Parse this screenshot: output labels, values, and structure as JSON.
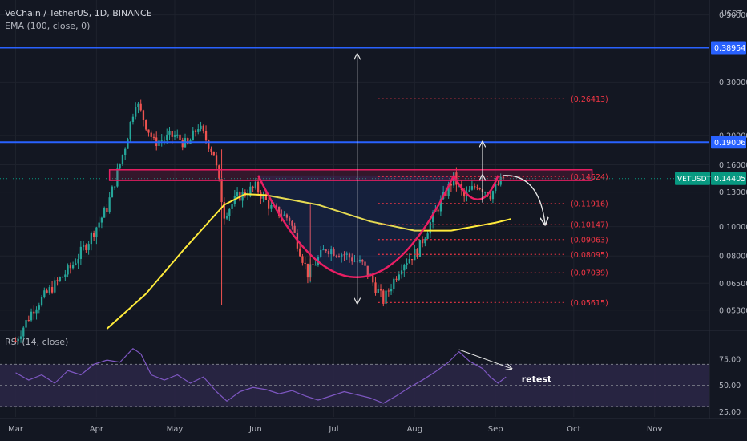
{
  "header": {
    "symbol_title": "VeChain / TetherUS, 1D, BINANCE",
    "ema_legend": "EMA (100, close, 0)",
    "rsi_legend": "RSI (14, close)",
    "axis_unit": "USDT"
  },
  "colors": {
    "background": "#131722",
    "grid": "#1e222d",
    "candle_up": "#26a69a",
    "candle_down": "#ef5350",
    "ema": "#ffeb3b",
    "resistance": "#2962ff",
    "pattern": "#e91e63",
    "fib": "#f23645",
    "rsi_line": "#7e57c2",
    "rsi_band": "#2a2645",
    "price_badge": "#089981"
  },
  "chart_data": [
    {
      "type": "candlestick",
      "title": "VeChain / TetherUS, 1D, BINANCE",
      "symbol": "VETUSDT",
      "y_scale": "log",
      "ylim": [
        0.046,
        0.56
      ],
      "y_tick_labels": [
        "0.50000",
        "0.30000",
        "0.20000",
        "0.16000",
        "0.13000",
        "0.10000",
        "0.08000",
        "0.06500",
        "0.05300"
      ],
      "y_ticks": [
        0.5,
        0.3,
        0.2,
        0.16,
        0.13,
        0.1,
        0.08,
        0.065,
        0.053
      ],
      "x_tick_labels": [
        "Mar",
        "Apr",
        "May",
        "Jun",
        "Jul",
        "Aug",
        "Sep",
        "Oct",
        "Nov"
      ],
      "current_price": {
        "label": "VETUSDT",
        "value": "0.14405",
        "y": 0.14405
      },
      "close_path": [
        {
          "date": "2021-03-01",
          "close": 0.042
        },
        {
          "date": "2021-03-08",
          "close": 0.054
        },
        {
          "date": "2021-03-15",
          "close": 0.063
        },
        {
          "date": "2021-03-22",
          "close": 0.073
        },
        {
          "date": "2021-03-29",
          "close": 0.09
        },
        {
          "date": "2021-04-05",
          "close": 0.115
        },
        {
          "date": "2021-04-12",
          "close": 0.185
        },
        {
          "date": "2021-04-16",
          "close": 0.26
        },
        {
          "date": "2021-04-23",
          "close": 0.19
        },
        {
          "date": "2021-05-01",
          "close": 0.2
        },
        {
          "date": "2021-05-06",
          "close": 0.185
        },
        {
          "date": "2021-05-10",
          "close": 0.215
        },
        {
          "date": "2021-05-16",
          "close": 0.175
        },
        {
          "date": "2021-05-20",
          "close": 0.11
        },
        {
          "date": "2021-05-25",
          "close": 0.125
        },
        {
          "date": "2021-06-01",
          "close": 0.135
        },
        {
          "date": "2021-06-07",
          "close": 0.115
        },
        {
          "date": "2021-06-14",
          "close": 0.106
        },
        {
          "date": "2021-06-21",
          "close": 0.07
        },
        {
          "date": "2021-06-28",
          "close": 0.085
        },
        {
          "date": "2021-07-05",
          "close": 0.081
        },
        {
          "date": "2021-07-12",
          "close": 0.075
        },
        {
          "date": "2021-07-20",
          "close": 0.057
        },
        {
          "date": "2021-07-27",
          "close": 0.075
        },
        {
          "date": "2021-08-02",
          "close": 0.083
        },
        {
          "date": "2021-08-09",
          "close": 0.112
        },
        {
          "date": "2021-08-16",
          "close": 0.145
        },
        {
          "date": "2021-08-20",
          "close": 0.125
        },
        {
          "date": "2021-08-25",
          "close": 0.138
        },
        {
          "date": "2021-08-30",
          "close": 0.128
        },
        {
          "date": "2021-09-04",
          "close": 0.144
        }
      ],
      "ema": {
        "name": "EMA (100, close, 0)",
        "points": [
          {
            "date": "2021-04-05",
            "value": 0.046
          },
          {
            "date": "2021-04-20",
            "value": 0.06
          },
          {
            "date": "2021-05-05",
            "value": 0.085
          },
          {
            "date": "2021-05-20",
            "value": 0.118
          },
          {
            "date": "2021-05-28",
            "value": 0.128
          },
          {
            "date": "2021-06-05",
            "value": 0.127
          },
          {
            "date": "2021-06-25",
            "value": 0.118
          },
          {
            "date": "2021-07-15",
            "value": 0.104
          },
          {
            "date": "2021-08-01",
            "value": 0.097
          },
          {
            "date": "2021-08-15",
            "value": 0.097
          },
          {
            "date": "2021-09-01",
            "value": 0.103
          },
          {
            "date": "2021-09-07",
            "value": 0.106
          }
        ]
      },
      "horizontal_levels": [
        {
          "label": "0.38954",
          "value": 0.38954,
          "kind": "resistance"
        },
        {
          "label": "0.19006",
          "value": 0.19006,
          "kind": "resistance"
        }
      ],
      "fib_levels": [
        {
          "label": "(0.26413)",
          "value": 0.26413
        },
        {
          "label": "(0.14624)",
          "value": 0.14624
        },
        {
          "label": "(0.11916)",
          "value": 0.11916
        },
        {
          "label": "(0.10147)",
          "value": 0.10147
        },
        {
          "label": "(0.09063)",
          "value": 0.09063
        },
        {
          "label": "(0.08095)",
          "value": 0.08095
        },
        {
          "label": "(0.07039)",
          "value": 0.07039
        },
        {
          "label": "(0.05615)",
          "value": 0.05615
        }
      ],
      "resistance_box": {
        "from": "2021-04-06",
        "to": "2021-10-08",
        "low": 0.142,
        "high": 0.154
      },
      "cup": {
        "from": "2021-06-02",
        "bottom": "2021-07-10",
        "to": "2021-08-16",
        "low": 0.056,
        "rim": 0.1475
      },
      "handle": {
        "from": "2021-08-16",
        "bottom": "2021-08-26",
        "to": "2021-09-02",
        "low": 0.117
      },
      "target_arrows": [
        {
          "date": "2021-07-10",
          "from": 0.1475,
          "to": 0.37
        },
        {
          "date": "2021-07-10",
          "from": 0.1475,
          "to": 0.056
        },
        {
          "date": "2021-08-27",
          "from": 0.1475,
          "to": 0.19
        },
        {
          "date": "2021-08-27",
          "from": 0.12,
          "to": 0.1475
        }
      ],
      "projection": [
        {
          "date": "2021-09-04",
          "value": 0.1475
        },
        {
          "date": "2021-09-14",
          "value": 0.13
        },
        {
          "date": "2021-09-20",
          "value": 0.102
        }
      ]
    },
    {
      "type": "line",
      "title": "RSI (14, close)",
      "ylim": [
        20,
        100
      ],
      "y_ticks": [
        75,
        50,
        25
      ],
      "y_tick_labels": [
        "75.00",
        "50.00",
        "25.00"
      ],
      "band": [
        30,
        70
      ],
      "series": [
        {
          "name": "RSI (14, close)",
          "points": [
            {
              "date": "2021-03-01",
              "value": 62
            },
            {
              "date": "2021-03-06",
              "value": 55
            },
            {
              "date": "2021-03-11",
              "value": 60
            },
            {
              "date": "2021-03-16",
              "value": 52
            },
            {
              "date": "2021-03-21",
              "value": 64
            },
            {
              "date": "2021-03-26",
              "value": 60
            },
            {
              "date": "2021-03-31",
              "value": 70
            },
            {
              "date": "2021-04-05",
              "value": 74
            },
            {
              "date": "2021-04-10",
              "value": 72
            },
            {
              "date": "2021-04-15",
              "value": 85
            },
            {
              "date": "2021-04-18",
              "value": 80
            },
            {
              "date": "2021-04-22",
              "value": 60
            },
            {
              "date": "2021-04-27",
              "value": 55
            },
            {
              "date": "2021-05-02",
              "value": 60
            },
            {
              "date": "2021-05-07",
              "value": 52
            },
            {
              "date": "2021-05-12",
              "value": 58
            },
            {
              "date": "2021-05-17",
              "value": 44
            },
            {
              "date": "2021-05-21",
              "value": 35
            },
            {
              "date": "2021-05-26",
              "value": 44
            },
            {
              "date": "2021-05-31",
              "value": 48
            },
            {
              "date": "2021-06-05",
              "value": 46
            },
            {
              "date": "2021-06-10",
              "value": 42
            },
            {
              "date": "2021-06-15",
              "value": 45
            },
            {
              "date": "2021-06-20",
              "value": 40
            },
            {
              "date": "2021-06-25",
              "value": 36
            },
            {
              "date": "2021-06-30",
              "value": 40
            },
            {
              "date": "2021-07-05",
              "value": 44
            },
            {
              "date": "2021-07-10",
              "value": 41
            },
            {
              "date": "2021-07-15",
              "value": 38
            },
            {
              "date": "2021-07-20",
              "value": 33
            },
            {
              "date": "2021-07-25",
              "value": 40
            },
            {
              "date": "2021-07-30",
              "value": 48
            },
            {
              "date": "2021-08-04",
              "value": 55
            },
            {
              "date": "2021-08-09",
              "value": 63
            },
            {
              "date": "2021-08-14",
              "value": 72
            },
            {
              "date": "2021-08-18",
              "value": 82
            },
            {
              "date": "2021-08-22",
              "value": 73
            },
            {
              "date": "2021-08-27",
              "value": 66
            },
            {
              "date": "2021-08-30",
              "value": 58
            },
            {
              "date": "2021-09-02",
              "value": 52
            },
            {
              "date": "2021-09-05",
              "value": 58
            }
          ]
        }
      ],
      "divergence": [
        {
          "date": "2021-08-18",
          "value": 84
        },
        {
          "date": "2021-09-07",
          "value": 66
        }
      ],
      "annotations": [
        {
          "text": "retest",
          "date": "2021-09-11",
          "value": 53
        }
      ]
    }
  ]
}
